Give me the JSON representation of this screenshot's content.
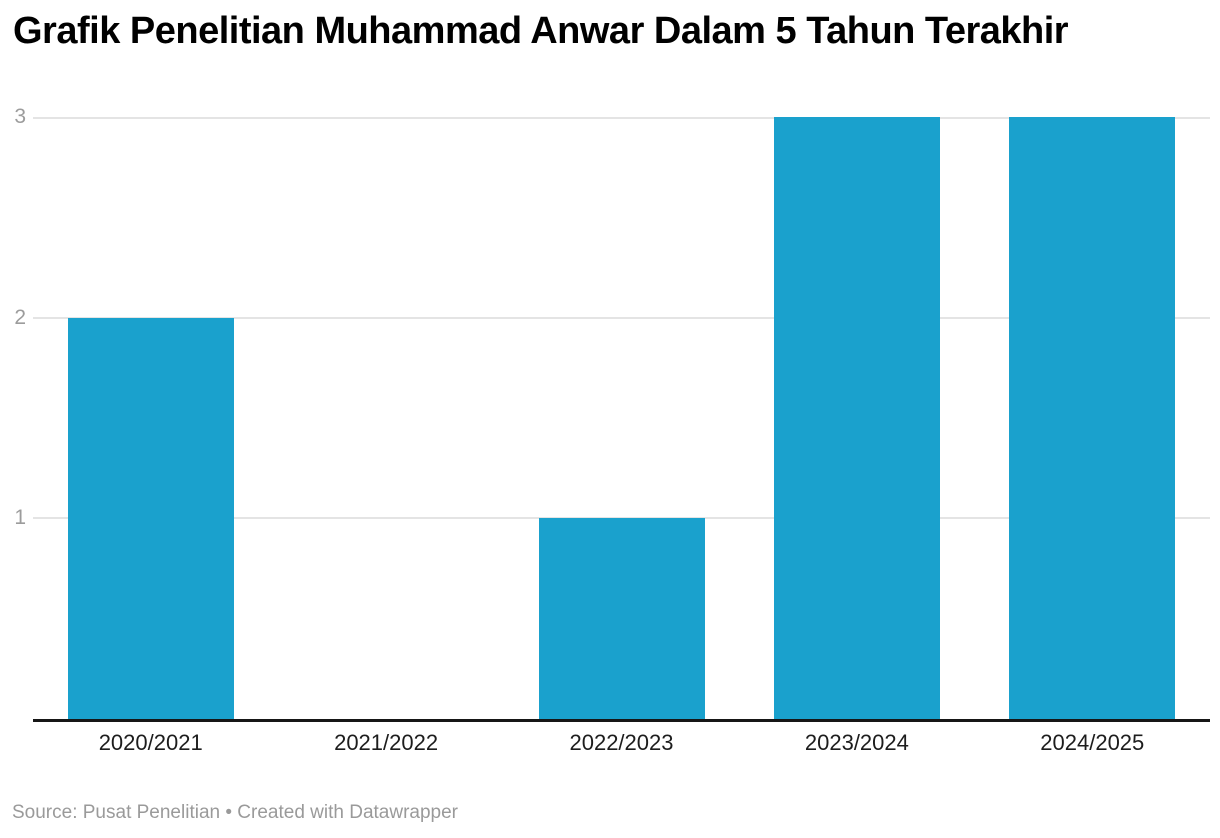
{
  "title": "Grafik Penelitian Muhammad Anwar Dalam 5 Tahun Terakhir",
  "footer": {
    "source": "Source: Pusat Penelitian",
    "separator": " • ",
    "credit": "Created with Datawrapper"
  },
  "colors": {
    "bar": "#1aa1cd",
    "gridline": "#e4e4e4",
    "axis_line": "#161616",
    "y_label": "#9c9c9c",
    "x_label": "#1d1d1d",
    "footer_text": "#9a9a9a",
    "title_text": "#000000"
  },
  "chart_data": {
    "type": "bar",
    "title": "Grafik Penelitian Muhammad Anwar Dalam 5 Tahun Terakhir",
    "categories": [
      "2020/2021",
      "2021/2022",
      "2022/2023",
      "2023/2024",
      "2024/2025"
    ],
    "values": [
      2,
      0,
      1,
      3,
      3
    ],
    "xlabel": "",
    "ylabel": "",
    "y_ticks": [
      1,
      2,
      3
    ],
    "ylim": [
      0,
      3
    ],
    "grid": "horizontal",
    "legend": "none",
    "bar_color": "#1aa1cd",
    "source_note": "Source: Pusat Penelitian • Created with Datawrapper"
  }
}
